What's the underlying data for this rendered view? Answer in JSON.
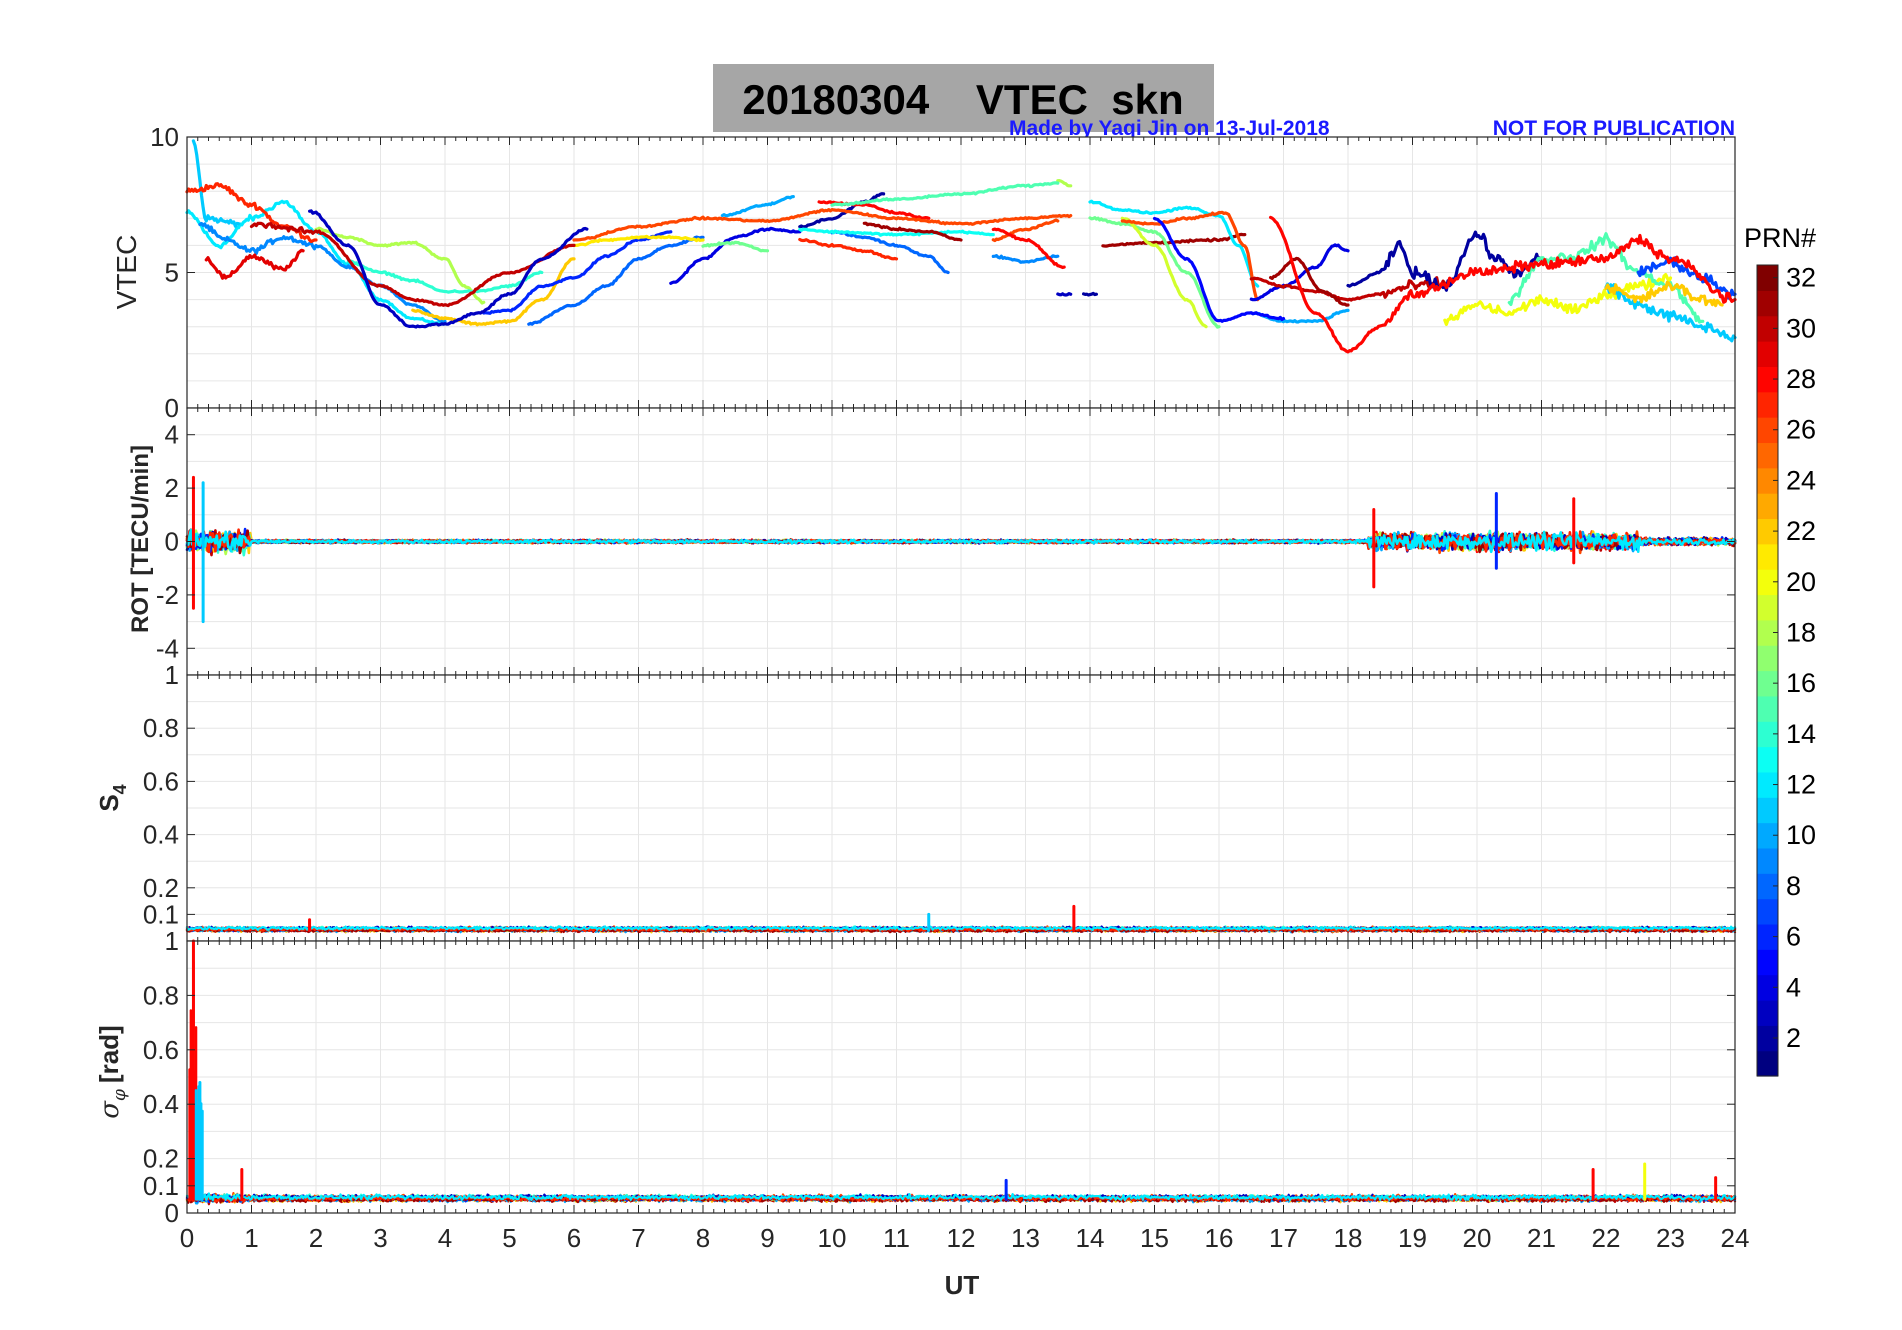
{
  "title": "20180304    VTEC  skn",
  "credit": "Made by Yaqi Jin on 13-Jul-2018",
  "disclaimer": "NOT FOR PUBLICATION",
  "colors": {
    "title_box": "#a6a6a6",
    "credit_text": "#1a1aff",
    "grid": "#e3e3e3",
    "axis": "#262626"
  },
  "chart_data": [
    {
      "type": "line",
      "id": "vtec",
      "ylabel": "VTEC",
      "xlim": [
        0,
        24
      ],
      "ylim": [
        0,
        10
      ],
      "yticks": [
        0,
        5,
        10
      ],
      "series_summary": [
        {
          "name": "PRN 30 (dark red)",
          "x": [
            1,
            2,
            3,
            3.5,
            4,
            5,
            6
          ],
          "y": [
            6.8,
            6.5,
            4.5,
            4.0,
            3.8,
            5.0,
            6.0
          ]
        },
        {
          "name": "PRN 3 (dark blue)",
          "x": [
            1.9,
            2.5,
            3,
            3.5,
            4,
            4.5,
            5,
            5.5,
            6.2
          ],
          "y": [
            7.3,
            6.0,
            3.8,
            3.0,
            3.1,
            3.5,
            4.2,
            5.5,
            6.6
          ]
        },
        {
          "name": "PRN 26 (orange)",
          "x": [
            6,
            7,
            8,
            9,
            10,
            11,
            12,
            13,
            13.7
          ],
          "y": [
            6.2,
            6.7,
            7.0,
            6.9,
            7.3,
            7.0,
            6.8,
            7.0,
            7.1
          ]
        },
        {
          "name": "PRN 15 (light green)",
          "x": [
            10,
            11,
            12,
            13,
            13.5
          ],
          "y": [
            7.5,
            7.7,
            7.9,
            8.2,
            8.3
          ]
        },
        {
          "name": "PRN 5 (blue)",
          "x": [
            15,
            15.5,
            16,
            16.5,
            17
          ],
          "y": [
            7.0,
            5.5,
            3.2,
            3.5,
            3.3
          ]
        },
        {
          "name": "PRN 28 (red)",
          "x": [
            16.8,
            17.5,
            18,
            18.5,
            19,
            20,
            21,
            22,
            22.5,
            23,
            24
          ],
          "y": [
            7.0,
            3.5,
            2.1,
            3.0,
            4.2,
            5.0,
            5.3,
            5.5,
            6.2,
            5.5,
            4.0
          ]
        }
      ]
    },
    {
      "type": "line",
      "id": "rot",
      "ylabel": "ROT [TECU/min]",
      "xlim": [
        0,
        24
      ],
      "ylim": [
        -5,
        5
      ],
      "yticks": [
        -4,
        -2,
        0,
        2,
        4
      ],
      "spikes": [
        {
          "x": 0.1,
          "ymin": -2.5,
          "ymax": 2.4
        },
        {
          "x": 0.25,
          "ymin": -3.0,
          "ymax": 2.2
        },
        {
          "x": 18.4,
          "ymin": -1.7,
          "ymax": 1.2
        },
        {
          "x": 20.3,
          "ymin": -1.0,
          "ymax": 1.8
        },
        {
          "x": 21.5,
          "ymin": -0.8,
          "ymax": 1.6
        }
      ]
    },
    {
      "type": "line",
      "id": "s4",
      "ylabel": "S4",
      "ylabel_main": "S",
      "ylabel_sub": "4",
      "xlim": [
        0,
        24
      ],
      "ylim": [
        0,
        1
      ],
      "yticks": [
        0.1,
        0.2,
        0.4,
        0.6,
        0.8,
        1
      ],
      "baseline": 0.04,
      "spikes": [
        {
          "x": 1.9,
          "y": 0.08
        },
        {
          "x": 11.5,
          "y": 0.1
        },
        {
          "x": 13.75,
          "y": 0.13
        }
      ]
    },
    {
      "type": "line",
      "id": "sigma_phi",
      "ylabel": "σφ [rad]",
      "ylabel_sigma": "σ",
      "ylabel_phi": "φ",
      "ylabel_unit": "[rad]",
      "xlabel": "UT",
      "xlim": [
        0,
        24
      ],
      "ylim": [
        0,
        1
      ],
      "yticks": [
        0,
        0.1,
        0.2,
        0.4,
        0.6,
        0.8,
        1
      ],
      "xticks": [
        "0",
        "1",
        "2",
        "3",
        "4",
        "5",
        "6",
        "7",
        "8",
        "9",
        "10",
        "11",
        "12",
        "13",
        "14",
        "15",
        "16",
        "17",
        "18",
        "19",
        "20",
        "21",
        "22",
        "23",
        "24"
      ],
      "baseline": 0.05,
      "spikes": [
        {
          "x": 0.1,
          "y": 1.0
        },
        {
          "x": 0.2,
          "y": 0.48
        },
        {
          "x": 0.85,
          "y": 0.16
        },
        {
          "x": 12.7,
          "y": 0.12
        },
        {
          "x": 21.8,
          "y": 0.16
        },
        {
          "x": 22.6,
          "y": 0.18
        },
        {
          "x": 23.7,
          "y": 0.13
        }
      ]
    }
  ],
  "colorbar": {
    "label": "PRN#",
    "min": 1,
    "max": 32,
    "ticks": [
      2,
      4,
      6,
      8,
      10,
      12,
      14,
      16,
      18,
      20,
      22,
      24,
      26,
      28,
      30,
      32
    ],
    "colormap": "jet"
  }
}
